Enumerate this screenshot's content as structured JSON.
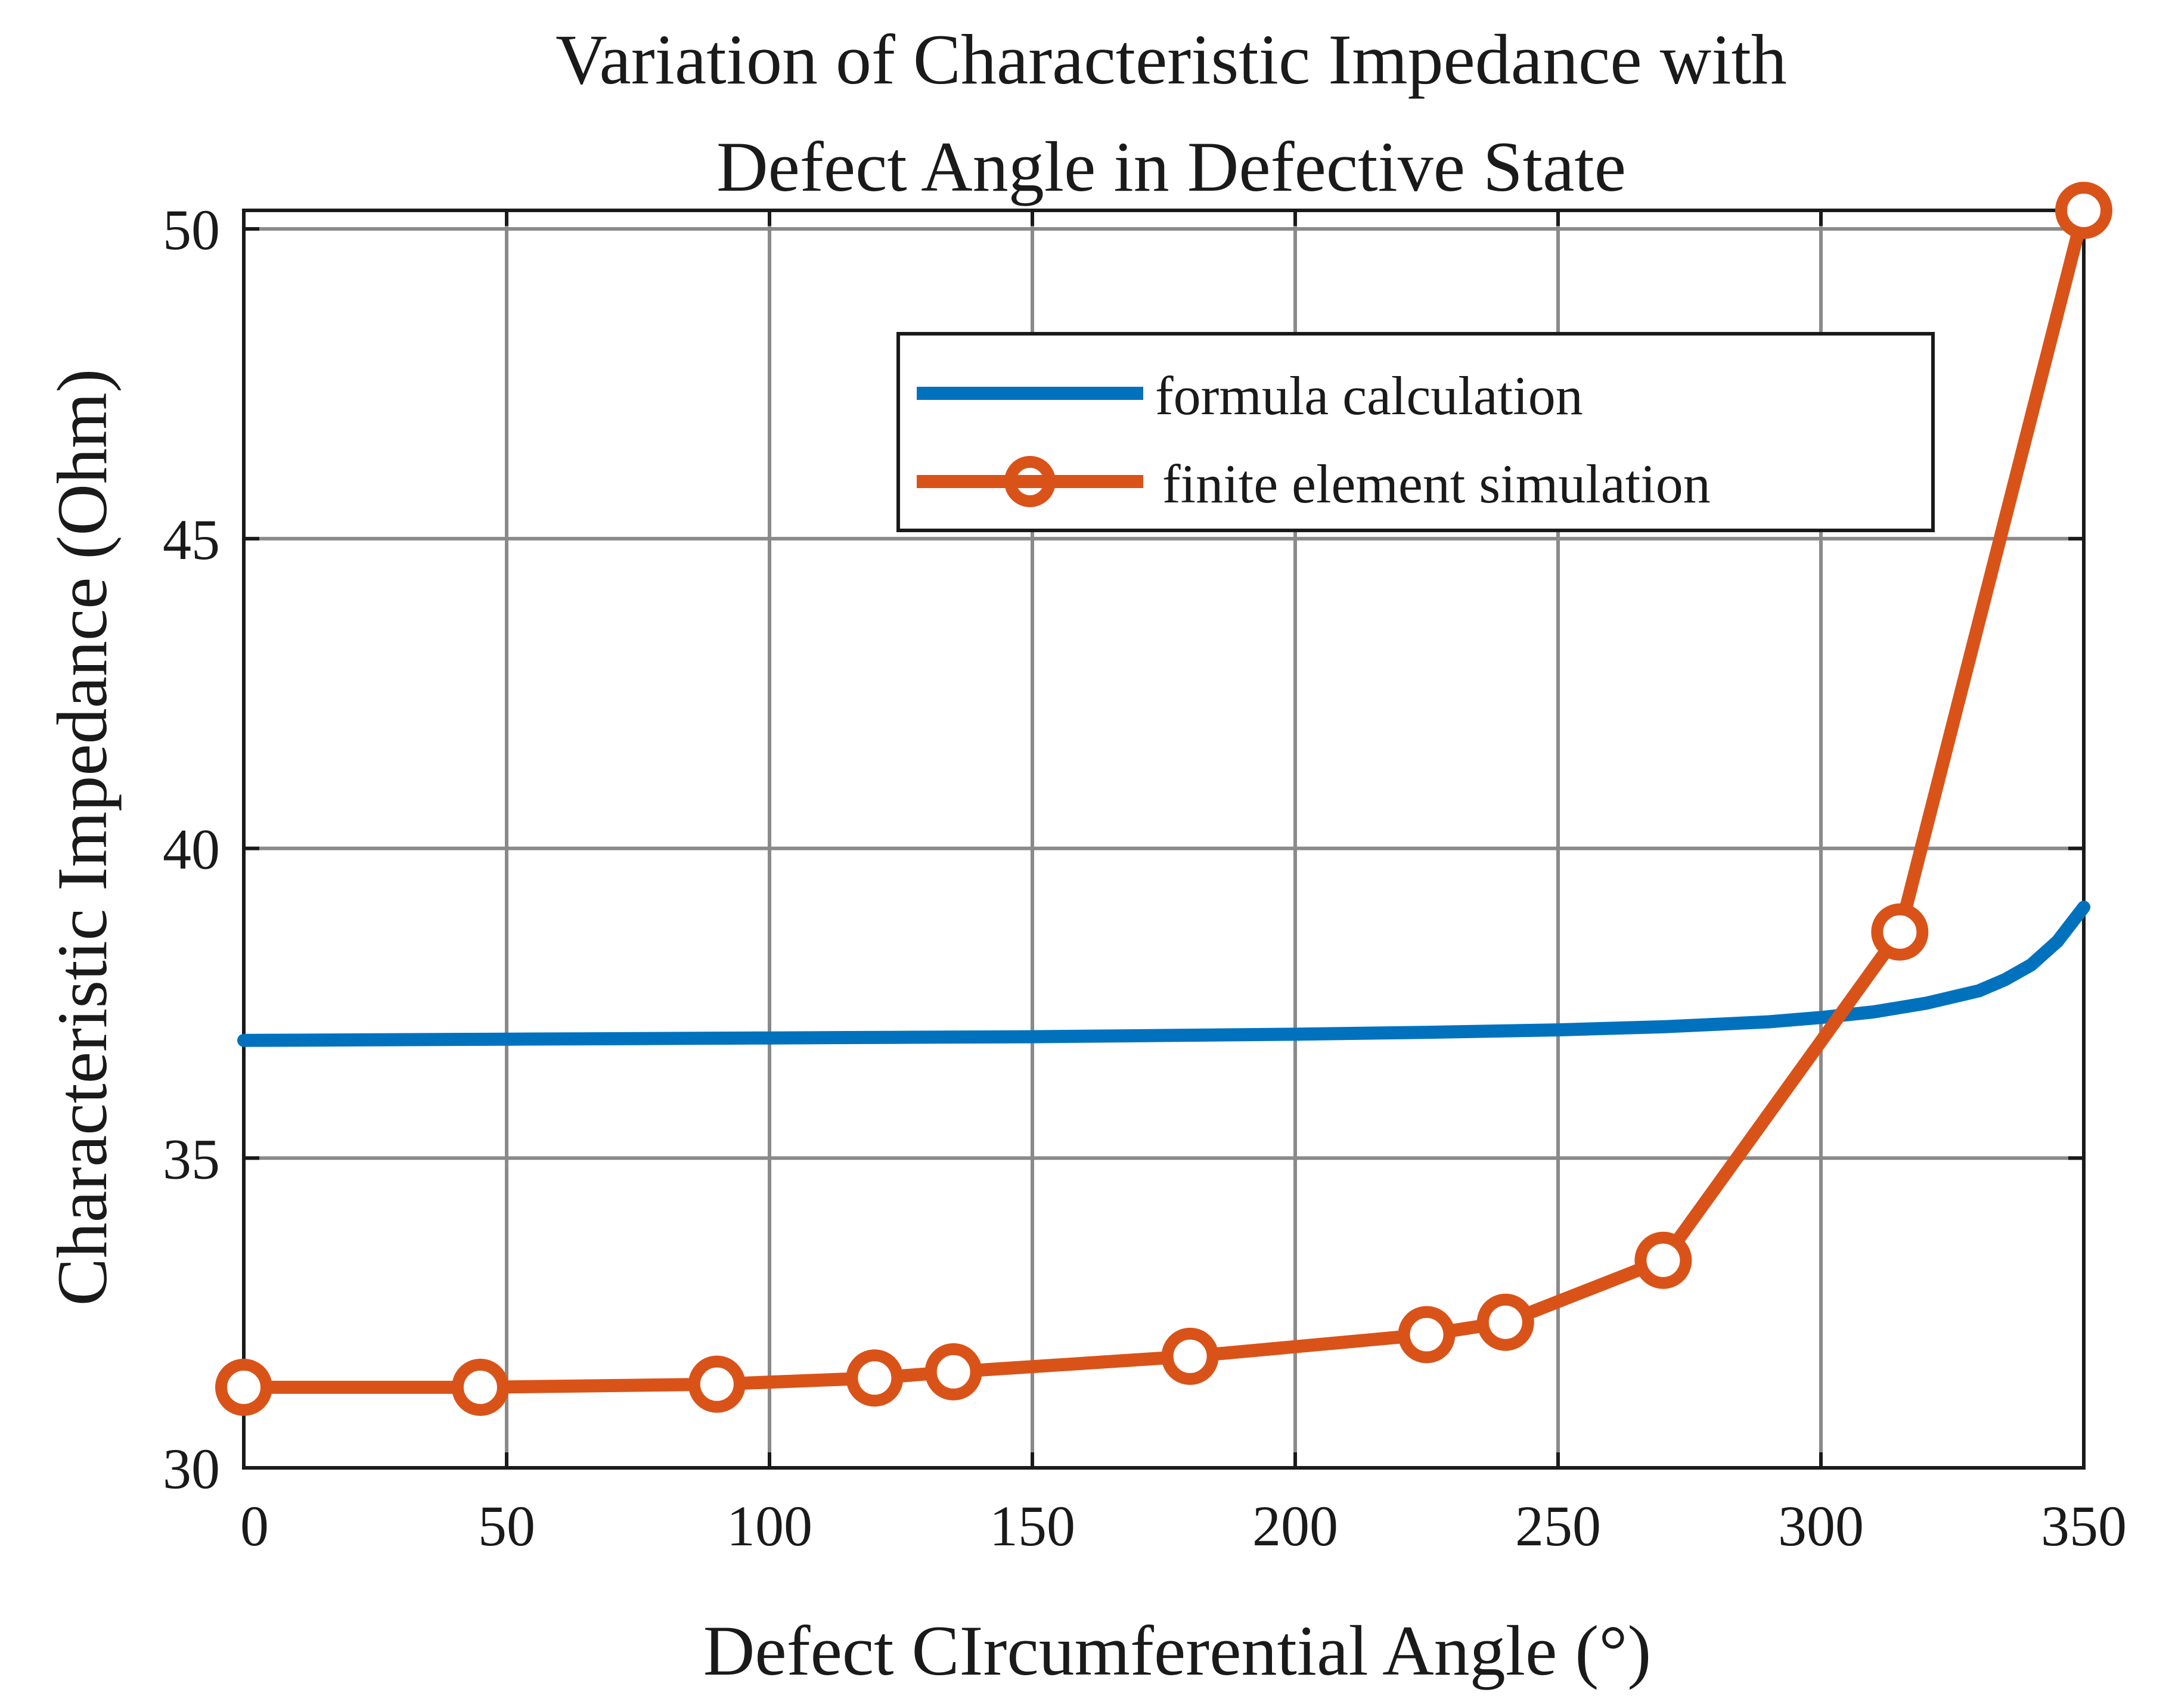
{
  "chart_data": {
    "type": "line",
    "title": [
      "Variation of Characteristic Impedance with",
      "Defect Angle in Defective State"
    ],
    "xlabel": "Defect CIrcumferential Angle (°)",
    "ylabel": "Characteristic Impedance (Ohm)",
    "xlim": [
      0,
      350
    ],
    "ylim": [
      30,
      50.3
    ],
    "xticks": [
      0,
      50,
      100,
      150,
      200,
      250,
      300,
      350
    ],
    "yticks": [
      30,
      35,
      40,
      45,
      50
    ],
    "grid": true,
    "legend_position": "upper-right",
    "series": [
      {
        "name": "formula calculation",
        "color": "#0072BD",
        "marker": "none",
        "x": [
          0,
          25,
          50,
          75,
          100,
          125,
          150,
          175,
          200,
          225,
          250,
          270,
          290,
          300,
          310,
          320,
          330,
          335,
          340,
          345,
          350
        ],
        "y": [
          36.9,
          36.91,
          36.92,
          36.93,
          36.94,
          36.95,
          36.96,
          36.98,
          37.0,
          37.03,
          37.07,
          37.12,
          37.2,
          37.27,
          37.36,
          37.5,
          37.7,
          37.88,
          38.12,
          38.5,
          39.05
        ]
      },
      {
        "name": "finite element simulation",
        "color": "#D95319",
        "marker": "circle",
        "x": [
          0,
          45,
          90,
          120,
          135,
          180,
          225,
          240,
          270,
          315,
          350
        ],
        "y": [
          31.3,
          31.3,
          31.35,
          31.45,
          31.55,
          31.8,
          32.15,
          32.35,
          33.35,
          38.65,
          50.3
        ]
      }
    ]
  }
}
